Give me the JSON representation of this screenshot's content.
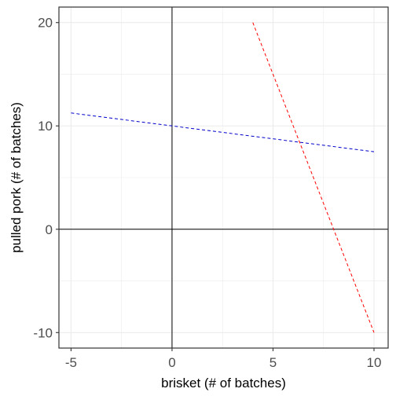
{
  "chart_data": {
    "type": "line",
    "title": "",
    "xlabel": "brisket (# of batches)",
    "ylabel": "pulled pork (# of batches)",
    "xlim": [
      -5.6,
      10.7
    ],
    "ylim": [
      -11.5,
      21.5
    ],
    "x_ticks": [
      -5,
      0,
      5,
      10
    ],
    "y_ticks": [
      -10,
      0,
      10,
      20
    ],
    "x_minor": [
      -2.5,
      2.5,
      7.5
    ],
    "y_minor": [
      -5,
      5,
      15
    ],
    "grid": true,
    "reference_lines": {
      "x": 0,
      "y": 0
    },
    "series": [
      {
        "color": "#0000cc",
        "dash": "dashed",
        "x": [
          -5,
          10
        ],
        "y": [
          11.25,
          7.5
        ]
      },
      {
        "color": "#ff0000",
        "dash": "dashed",
        "x": [
          4,
          10
        ],
        "y": [
          20,
          -10
        ]
      }
    ],
    "colors": {
      "gridline": "#ebebeb",
      "panel_border": "#333333",
      "reference_line": "#000000"
    }
  }
}
